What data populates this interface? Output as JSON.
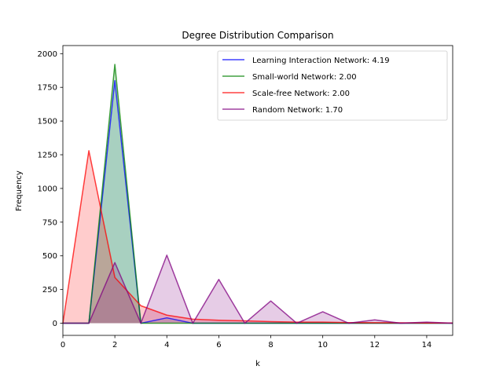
{
  "chart_data": {
    "type": "area",
    "title": "Degree Distribution Comparison",
    "xlabel": "k",
    "ylabel": "Frequency",
    "xlim": [
      0,
      15
    ],
    "ylim": [
      -90,
      2060
    ],
    "xticks": [
      0,
      2,
      4,
      6,
      8,
      10,
      12,
      14
    ],
    "yticks": [
      0,
      250,
      500,
      750,
      1000,
      1250,
      1500,
      1750,
      2000
    ],
    "grid": false,
    "legend_position": "top-right",
    "x": [
      0,
      1,
      2,
      3,
      4,
      5,
      6,
      7,
      8,
      9,
      10,
      11,
      12,
      13,
      14,
      15
    ],
    "series": [
      {
        "name": "Learning Interaction Network: 4.19",
        "color": "#0000ff",
        "fill": "#1f77b4",
        "values": [
          0,
          0,
          1800,
          0,
          40,
          0,
          0,
          0,
          0,
          0,
          0,
          0,
          0,
          0,
          0,
          0
        ]
      },
      {
        "name": "Small-world Network: 2.00",
        "color": "#008000",
        "fill": "#008000",
        "values": [
          0,
          0,
          1920,
          0,
          0,
          0,
          0,
          0,
          0,
          0,
          0,
          0,
          0,
          0,
          0,
          0
        ]
      },
      {
        "name": "Scale-free Network: 2.00",
        "color": "#ff0000",
        "fill": "#ff0000",
        "values": [
          0,
          1280,
          340,
          130,
          60,
          30,
          22,
          18,
          12,
          8,
          8,
          5,
          4,
          3,
          2,
          2
        ]
      },
      {
        "name": "Random Network: 1.70",
        "color": "#800080",
        "fill": "#800080",
        "values": [
          0,
          0,
          450,
          0,
          505,
          0,
          325,
          0,
          165,
          0,
          85,
          0,
          25,
          0,
          8,
          0
        ]
      }
    ]
  }
}
